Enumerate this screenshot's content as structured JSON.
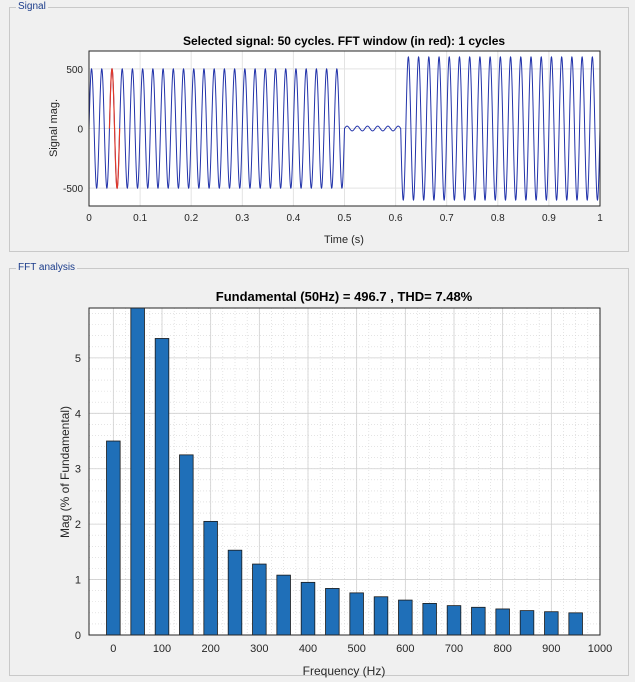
{
  "signal_panel": {
    "label": "Signal",
    "chart_data": {
      "type": "line",
      "title": "Selected signal: 50 cycles. FFT window (in red): 1 cycles",
      "xlabel": "Time (s)",
      "ylabel": "Signal mag.",
      "xlim": [
        0,
        1
      ],
      "ylim": [
        -650,
        650
      ],
      "xticks": [
        0,
        0.1,
        0.2,
        0.3,
        0.4,
        0.5,
        0.6,
        0.7,
        0.8,
        0.9,
        1
      ],
      "xtick_labels": [
        "0",
        "0.1",
        "0.2",
        "0.3",
        "0.4",
        "0.5",
        "0.6",
        "0.7",
        "0.8",
        "0.9",
        "1"
      ],
      "yticks": [
        -500,
        0,
        500
      ],
      "ytick_labels": [
        "-500",
        "0",
        "500"
      ],
      "grid": true,
      "frequency_hz": 50,
      "segments": [
        {
          "t_start": 0,
          "t_end": 0.5,
          "amplitude": 500
        },
        {
          "t_start": 0.5,
          "t_end": 0.61,
          "amplitude": 20
        },
        {
          "t_start": 0.61,
          "t_end": 1.0,
          "amplitude": 600
        }
      ],
      "fft_window": {
        "t_start": 0.04,
        "t_end": 0.06,
        "color": "#e0392b"
      },
      "line_color": "#2233aa"
    }
  },
  "fft_panel": {
    "label": "FFT analysis",
    "chart_data": {
      "type": "bar",
      "title": "Fundamental (50Hz) = 496.7 , THD= 7.48%",
      "xlabel": "Frequency (Hz)",
      "ylabel": "Mag (% of Fundamental)",
      "xlim": [
        -50,
        1000
      ],
      "ylim": [
        0,
        5.9
      ],
      "xticks": [
        0,
        100,
        200,
        300,
        400,
        500,
        600,
        700,
        800,
        900,
        1000
      ],
      "xtick_labels": [
        "0",
        "100",
        "200",
        "300",
        "400",
        "500",
        "600",
        "700",
        "800",
        "900",
        "1000"
      ],
      "yticks": [
        0,
        1,
        2,
        3,
        4,
        5
      ],
      "ytick_labels": [
        "0",
        "1",
        "2",
        "3",
        "4",
        "5"
      ],
      "grid": true,
      "bar_color": "#1f6fb8",
      "x": [
        0,
        50,
        100,
        150,
        200,
        250,
        300,
        350,
        400,
        450,
        500,
        550,
        600,
        650,
        700,
        750,
        800,
        850,
        900,
        950
      ],
      "values": [
        3.5,
        5.9,
        5.35,
        3.25,
        2.05,
        1.53,
        1.28,
        1.08,
        0.95,
        0.84,
        0.76,
        0.69,
        0.63,
        0.57,
        0.53,
        0.5,
        0.47,
        0.44,
        0.42,
        0.4
      ]
    }
  }
}
